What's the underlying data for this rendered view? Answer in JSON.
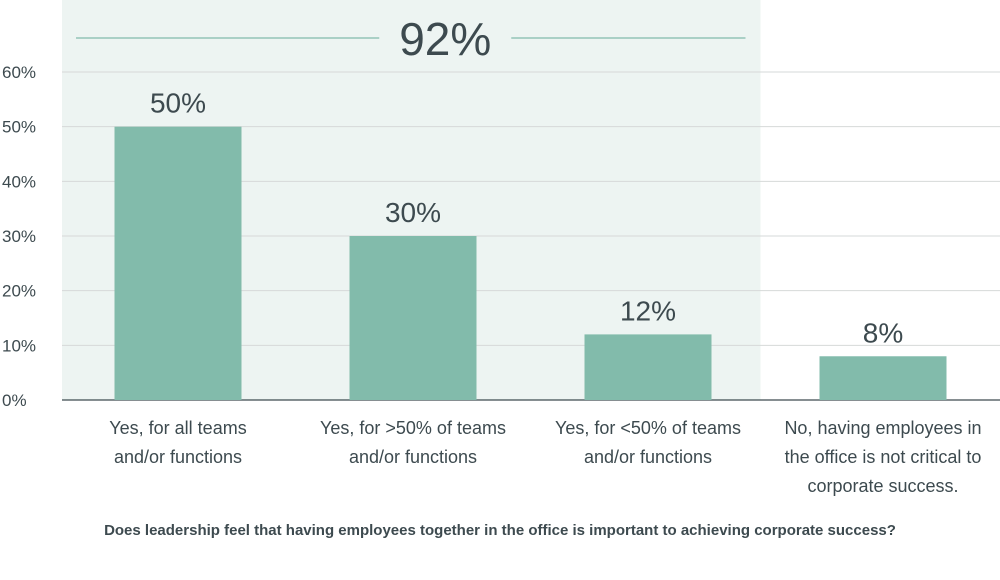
{
  "chart_data": {
    "type": "bar",
    "categories": [
      [
        "Yes, for all teams",
        "and/or functions"
      ],
      [
        "Yes, for >50% of teams",
        "and/or functions"
      ],
      [
        "Yes, for <50% of teams",
        "and/or functions"
      ],
      [
        "No, having employees in",
        "the office is not critical to",
        "corporate success."
      ]
    ],
    "values": [
      50,
      30,
      12,
      8
    ],
    "data_labels": [
      "50%",
      "30%",
      "12%",
      "8%"
    ],
    "y_ticks": [
      "0%",
      "10%",
      "20%",
      "30%",
      "40%",
      "50%",
      "60%"
    ],
    "ylim": [
      0,
      60
    ],
    "grid": true,
    "highlight": {
      "label": "92%",
      "covers_categories": [
        0,
        1,
        2
      ],
      "color": "#edf4f2"
    },
    "footnote": "Does leadership feel that having employees together in the office is important to achieving corporate success?",
    "bar_color": "#82bbab",
    "grid_color": "#d6d9d8",
    "text_color": "#3d4a4f"
  }
}
